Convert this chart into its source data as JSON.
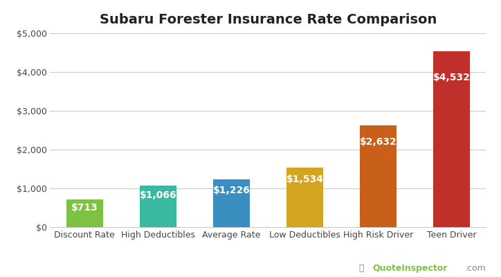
{
  "title": "Subaru Forester Insurance Rate Comparison",
  "categories": [
    "Discount Rate",
    "High Deductibles",
    "Average Rate",
    "Low Deductibles",
    "High Risk Driver",
    "Teen Driver"
  ],
  "values": [
    713,
    1066,
    1226,
    1534,
    2632,
    4532
  ],
  "bar_colors": [
    "#7dc242",
    "#3ab8a0",
    "#3a8fc0",
    "#d4a520",
    "#c8601a",
    "#c0302a"
  ],
  "labels": [
    "$713",
    "$1,066",
    "$1,226",
    "$1,534",
    "$2,632",
    "$4,532"
  ],
  "ylim": [
    0,
    5000
  ],
  "yticks": [
    0,
    1000,
    2000,
    3000,
    4000,
    5000
  ],
  "ytick_labels": [
    "$0",
    "$1,000",
    "$2,000",
    "$3,000",
    "$4,000",
    "$5,000"
  ],
  "title_fontsize": 14,
  "label_fontsize": 10,
  "tick_fontsize": 9,
  "background_color": "#ffffff",
  "grid_color": "#cccccc",
  "watermark_text": "QuoteInspector.com",
  "watermark_color": "#888888",
  "watermark_bold": "QuoteInspector",
  "watermark_green": "#7dc242"
}
